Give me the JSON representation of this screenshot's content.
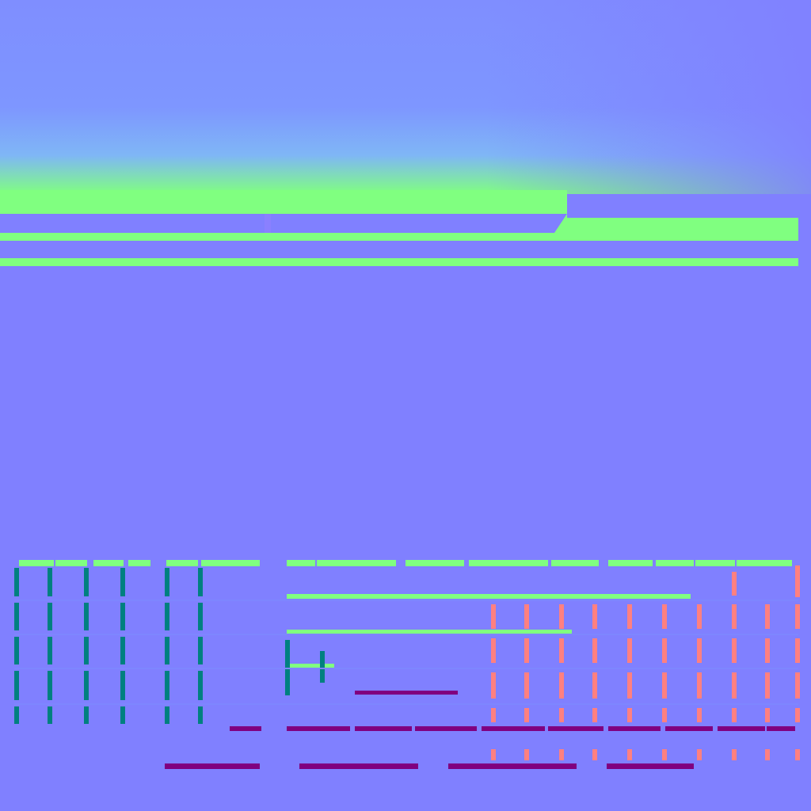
{
  "texture": {
    "kind": "normal-map",
    "colors": {
      "flat": "#8080ff",
      "up": "#80ff80",
      "down": "#800080",
      "left": "#008080",
      "right": "#ff8080",
      "sky_tint": "#7f96ff"
    }
  }
}
